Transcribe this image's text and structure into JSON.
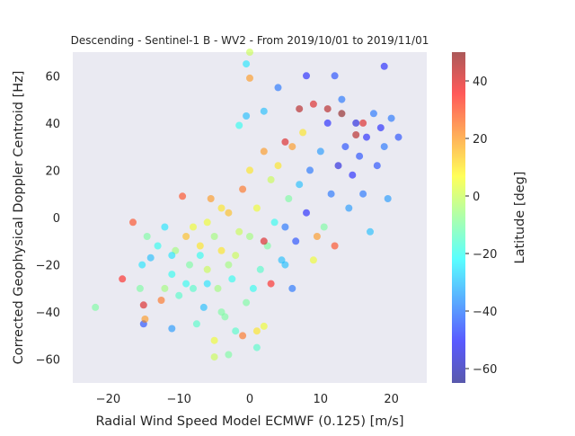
{
  "chart_data": {
    "type": "scatter",
    "title": "Descending - Sentinel-1 B - WV2 - From 2019/10/01 to 2019/11/01",
    "xlabel": "Radial Wind Speed Model ECMWF (0.125) [m/s]",
    "ylabel": "Corrected Geophysical Doppler Centroid [Hz]",
    "xlim": [
      -25,
      25
    ],
    "ylim": [
      -70,
      70
    ],
    "xticks": [
      -20,
      -10,
      0,
      10,
      20
    ],
    "yticks": [
      -60,
      -40,
      -20,
      0,
      20,
      40,
      60
    ],
    "grid": false,
    "background": "#eaeaf2",
    "colormap": "jet",
    "marker_alpha": 0.55,
    "colorbar": {
      "label": "Latitude [deg]",
      "range": [
        -65,
        50
      ],
      "ticks": [
        -60,
        -40,
        -20,
        0,
        20,
        40
      ]
    },
    "points": [
      [
        -21.8,
        -38,
        -10
      ],
      [
        -18,
        -26,
        35
      ],
      [
        -16.5,
        -2,
        30
      ],
      [
        -15.5,
        -30,
        -10
      ],
      [
        -15,
        -37,
        40
      ],
      [
        -15,
        -45,
        -45
      ],
      [
        -14.8,
        -43,
        20
      ],
      [
        -15.2,
        -20,
        -25
      ],
      [
        -14.5,
        -8,
        -10
      ],
      [
        -14,
        -17,
        -30
      ],
      [
        -13,
        -12,
        -20
      ],
      [
        -12.5,
        -35,
        25
      ],
      [
        -12,
        -4,
        -25
      ],
      [
        -11,
        -47,
        -35
      ],
      [
        -11,
        -24,
        -20
      ],
      [
        -10.5,
        -14,
        -5
      ],
      [
        -10,
        -33,
        -15
      ],
      [
        -9.5,
        9,
        30
      ],
      [
        -9,
        -28,
        -20
      ],
      [
        -8.5,
        -20,
        -10
      ],
      [
        -8,
        -4,
        5
      ],
      [
        -7.5,
        -45,
        -15
      ],
      [
        -7,
        -12,
        10
      ],
      [
        -6.5,
        -38,
        -30
      ],
      [
        -6,
        -22,
        0
      ],
      [
        -5.5,
        8,
        20
      ],
      [
        -5,
        -52,
        5
      ],
      [
        -5,
        -59,
        0
      ],
      [
        -4.5,
        -30,
        -5
      ],
      [
        -4,
        -14,
        10
      ],
      [
        -3.5,
        -42,
        -10
      ],
      [
        -3,
        2,
        15
      ],
      [
        -2.5,
        -26,
        -20
      ],
      [
        -2,
        -48,
        -15
      ],
      [
        -1.5,
        -6,
        0
      ],
      [
        -1,
        12,
        25
      ],
      [
        -0.5,
        -36,
        -10
      ],
      [
        0,
        20,
        10
      ],
      [
        0,
        -8,
        -5
      ],
      [
        0.5,
        -30,
        -20
      ],
      [
        1,
        4,
        5
      ],
      [
        1,
        -48,
        10
      ],
      [
        1.5,
        -22,
        -15
      ],
      [
        2,
        -46,
        5
      ],
      [
        2,
        28,
        20
      ],
      [
        2.5,
        -12,
        -10
      ],
      [
        3,
        16,
        0
      ],
      [
        3.5,
        -2,
        -20
      ],
      [
        4,
        22,
        10
      ],
      [
        4.5,
        -18,
        -30
      ],
      [
        5,
        -4,
        -40
      ],
      [
        5.5,
        8,
        -10
      ],
      [
        6,
        30,
        20
      ],
      [
        6.5,
        -10,
        -45
      ],
      [
        7,
        14,
        -30
      ],
      [
        7.5,
        36,
        10
      ],
      [
        8,
        2,
        -50
      ],
      [
        8.5,
        20,
        -40
      ],
      [
        9,
        -18,
        5
      ],
      [
        9.5,
        -8,
        20
      ],
      [
        10,
        28,
        -35
      ],
      [
        10.5,
        -4,
        -10
      ],
      [
        11,
        40,
        -50
      ],
      [
        11.5,
        10,
        -40
      ],
      [
        12,
        -12,
        30
      ],
      [
        12.5,
        22,
        -55
      ],
      [
        13,
        50,
        -40
      ],
      [
        13.5,
        30,
        -45
      ],
      [
        14,
        4,
        -35
      ],
      [
        14.5,
        18,
        -50
      ],
      [
        15,
        40,
        -55
      ],
      [
        15.5,
        26,
        -45
      ],
      [
        16,
        10,
        -40
      ],
      [
        16.5,
        34,
        -50
      ],
      [
        17,
        -6,
        -30
      ],
      [
        17.5,
        44,
        -40
      ],
      [
        18,
        22,
        -45
      ],
      [
        18.5,
        38,
        -50
      ],
      [
        19,
        30,
        -40
      ],
      [
        19,
        64,
        -50
      ],
      [
        20,
        42,
        -40
      ],
      [
        19.5,
        8,
        -35
      ],
      [
        21,
        34,
        -45
      ],
      [
        12,
        60,
        -45
      ],
      [
        8,
        60,
        -50
      ],
      [
        0,
        70,
        0
      ],
      [
        0,
        59,
        20
      ],
      [
        -0.5,
        65,
        -25
      ],
      [
        4,
        55,
        -40
      ],
      [
        2,
        45,
        -30
      ],
      [
        -1.5,
        39,
        -20
      ],
      [
        -0.5,
        43,
        -30
      ],
      [
        5,
        32,
        40
      ],
      [
        7,
        46,
        45
      ],
      [
        9,
        48,
        40
      ],
      [
        11,
        46,
        45
      ],
      [
        13,
        44,
        50
      ],
      [
        15,
        35,
        45
      ],
      [
        16,
        40,
        40
      ],
      [
        -3,
        -20,
        -5
      ],
      [
        -8,
        -30,
        -15
      ],
      [
        -6,
        -28,
        -25
      ],
      [
        -4,
        -40,
        -10
      ],
      [
        -2,
        -16,
        0
      ],
      [
        -7,
        -16,
        -20
      ],
      [
        -5,
        -8,
        -5
      ],
      [
        -9,
        -8,
        15
      ],
      [
        -11,
        -16,
        -25
      ],
      [
        -12,
        -30,
        -5
      ],
      [
        3,
        -28,
        35
      ],
      [
        2,
        -10,
        40
      ],
      [
        5,
        -20,
        -30
      ],
      [
        6,
        -30,
        -40
      ],
      [
        -1,
        -50,
        25
      ],
      [
        1,
        -55,
        -15
      ],
      [
        -3,
        -58,
        -10
      ],
      [
        -6,
        -2,
        5
      ],
      [
        -4,
        4,
        10
      ]
    ]
  }
}
